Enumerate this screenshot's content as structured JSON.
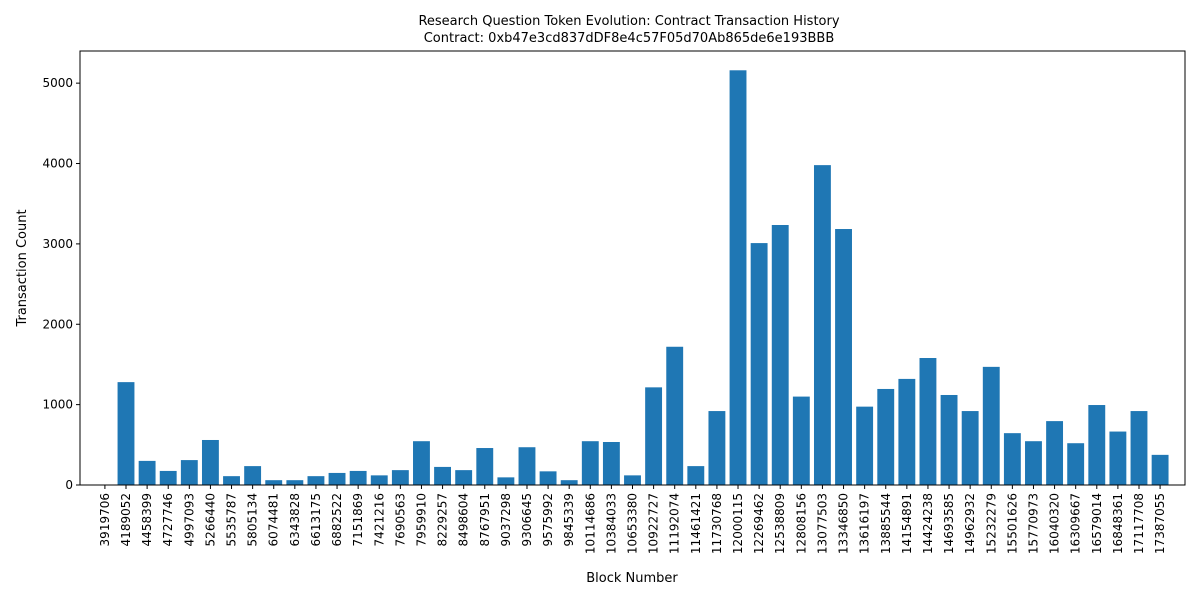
{
  "chart_data": {
    "type": "bar",
    "title": "Research Question Token Evolution: Contract Transaction History",
    "subtitle": "Contract: 0xb47e3cd837dDF8e4c57F05d70Ab865de6e193BBB",
    "xlabel": "Block Number",
    "ylabel": "Transaction Count",
    "ylim": [
      0,
      5400
    ],
    "yticks": [
      0,
      1000,
      2000,
      3000,
      4000,
      5000
    ],
    "grid": false,
    "legend": "none",
    "bar_color": "#1f77b4",
    "categories": [
      "3919706",
      "4189052",
      "4458399",
      "4727746",
      "4997093",
      "5266440",
      "5535787",
      "5805134",
      "6074481",
      "6343828",
      "6613175",
      "6882522",
      "7151869",
      "7421216",
      "7690563",
      "7959910",
      "8229257",
      "8498604",
      "8767951",
      "9037298",
      "9306645",
      "9575992",
      "9845339",
      "10114686",
      "10384033",
      "10653380",
      "10922727",
      "11192074",
      "11461421",
      "11730768",
      "12000115",
      "12269462",
      "12538809",
      "12808156",
      "13077503",
      "13346850",
      "13616197",
      "13885544",
      "14154891",
      "14424238",
      "14693585",
      "14962932",
      "15232279",
      "15501626",
      "15770973",
      "16040320",
      "16309667",
      "16579014",
      "16848361",
      "17117708",
      "17387055"
    ],
    "values": [
      0,
      1280,
      300,
      175,
      310,
      560,
      110,
      235,
      60,
      60,
      110,
      150,
      175,
      120,
      185,
      545,
      225,
      185,
      460,
      95,
      470,
      170,
      60,
      545,
      535,
      120,
      1215,
      1720,
      235,
      920,
      5160,
      3010,
      3235,
      1100,
      3980,
      3185,
      975,
      1195,
      1320,
      1580,
      1120,
      920,
      1470,
      645,
      545,
      795,
      520,
      995,
      665,
      920,
      375
    ]
  }
}
